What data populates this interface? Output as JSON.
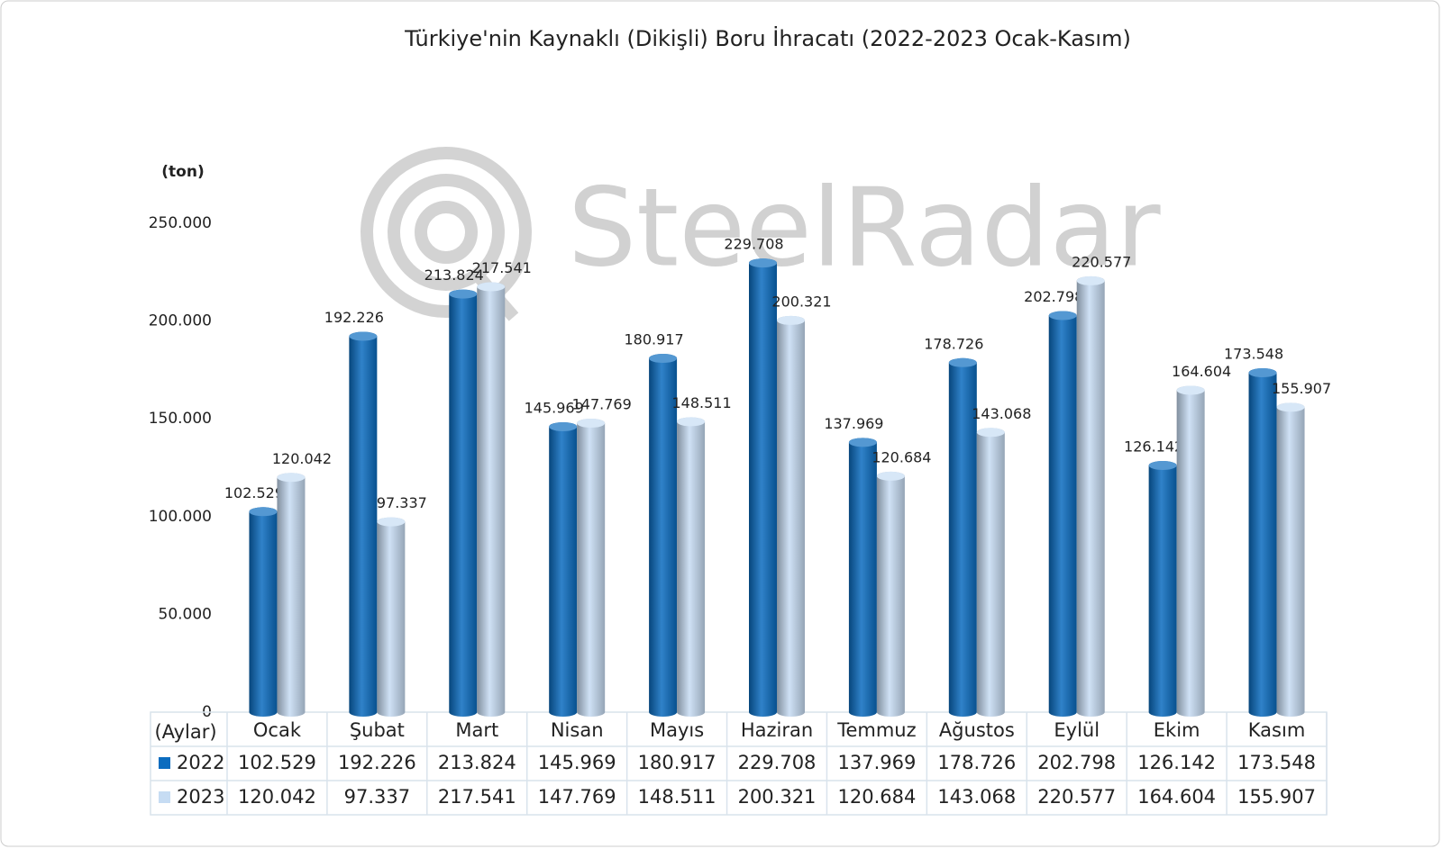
{
  "chart_data": {
    "type": "bar",
    "title": "Türkiye'nin Kaynaklı (Dikişli) Boru İhracatı (2022-2023 Ocak-Kasım)",
    "y_label": "(ton)",
    "table_header": "(Aylar)",
    "watermark": "SteelRadar",
    "categories": [
      "Ocak",
      "Şubat",
      "Mart",
      "Nisan",
      "Mayıs",
      "Haziran",
      "Temmuz",
      "Ağustos",
      "Eylül",
      "Ekim",
      "Kasım"
    ],
    "series": [
      {
        "name": "2022",
        "color": "#0b6cbf",
        "values": [
          102529,
          192226,
          213824,
          145969,
          180917,
          229708,
          137969,
          178726,
          202798,
          126142,
          173548
        ],
        "value_labels": [
          "102.529",
          "192.226",
          "213.824",
          "145.969",
          "180.917",
          "229.708",
          "137.969",
          "178.726",
          "202.798",
          "126.142",
          "173.548"
        ]
      },
      {
        "name": "2023",
        "color": "#c6dcf3",
        "values": [
          120042,
          97337,
          217541,
          147769,
          148511,
          200321,
          120684,
          143068,
          220577,
          164604,
          155907
        ],
        "value_labels": [
          "120.042",
          "97.337",
          "217.541",
          "147.769",
          "148.511",
          "200.321",
          "120.684",
          "143.068",
          "220.577",
          "164.604",
          "155.907"
        ]
      }
    ],
    "ylim": [
      0,
      250000
    ],
    "yticks": [
      0,
      {
        "value": 50000,
        "label": "50.000"
      },
      {
        "value": 100000,
        "label": "100.000"
      },
      {
        "value": 150000,
        "label": "150.000"
      },
      {
        "value": 200000,
        "label": "200.000"
      },
      {
        "value": 250000,
        "label": "250.000"
      }
    ]
  }
}
